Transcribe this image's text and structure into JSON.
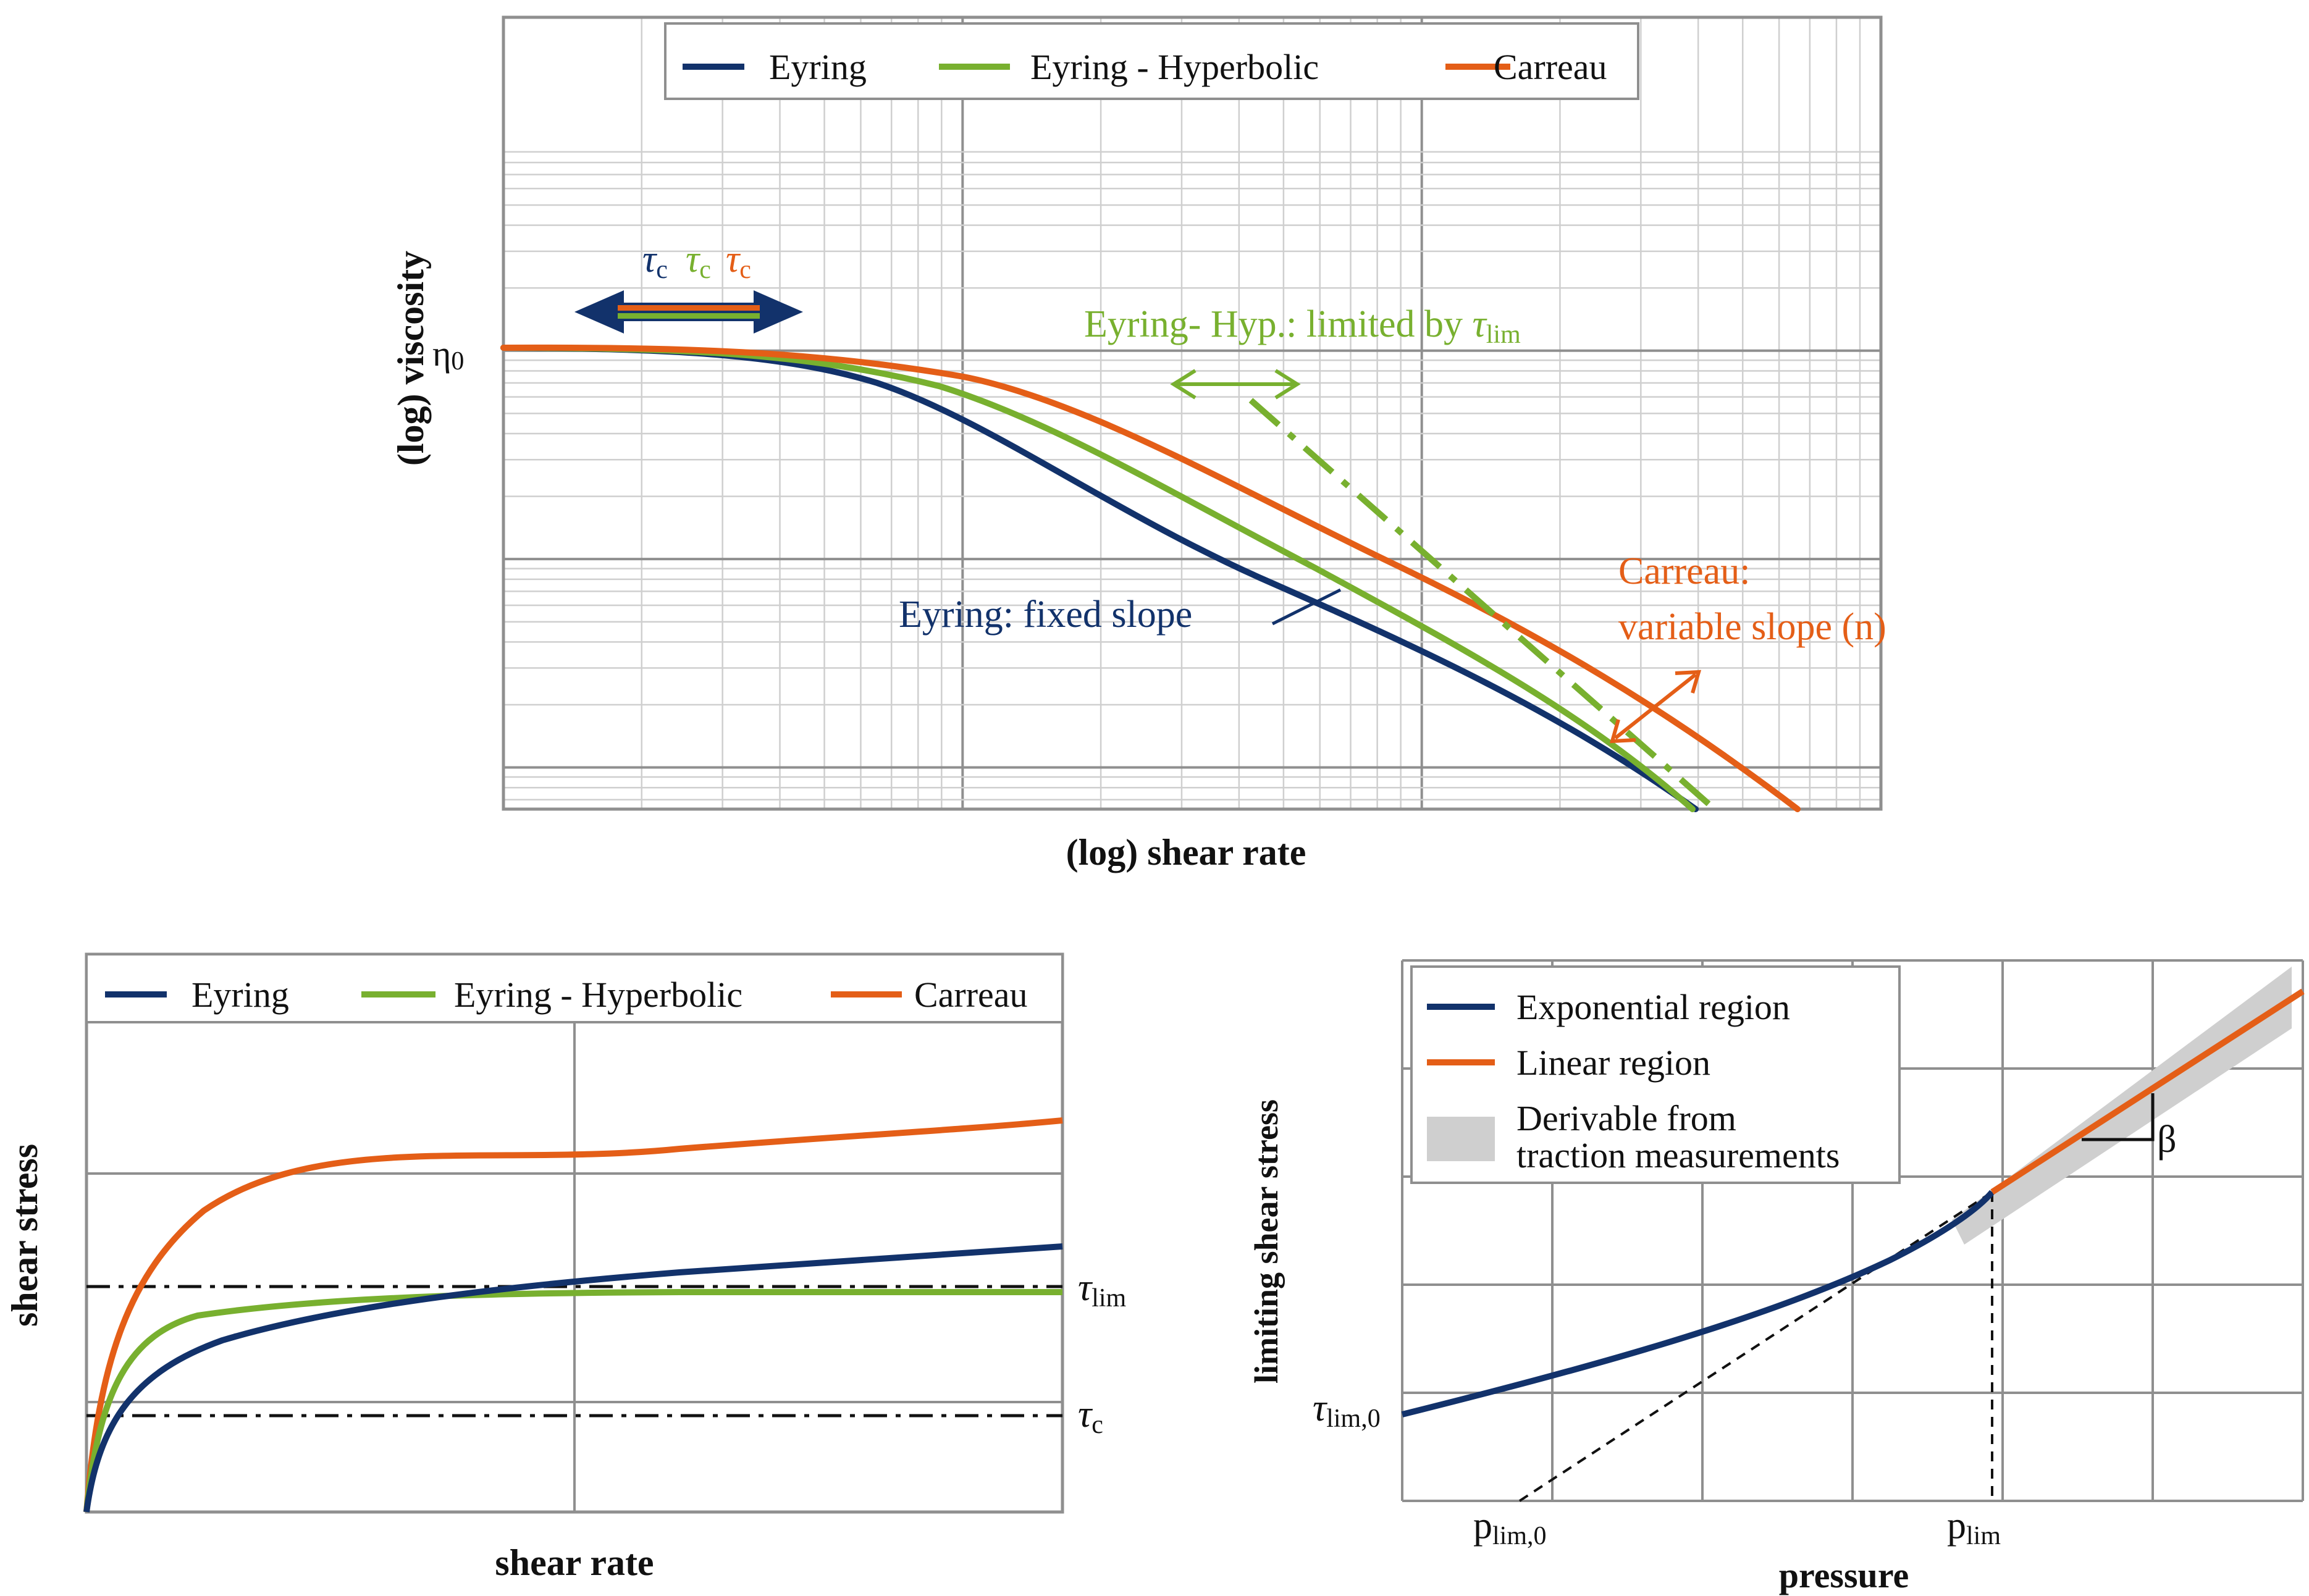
{
  "figure": {
    "colors": {
      "eyring": "#12326b",
      "hyperbolic": "#78b02f",
      "carreau": "#e45e17",
      "band": "#cfcfcf",
      "grid": "#8f8f8f",
      "text": "#111111"
    }
  },
  "chart_data": [
    {
      "type": "line",
      "title": "",
      "xlabel": "(log) shear rate",
      "ylabel": "(log) viscosity",
      "xscale": "log",
      "yscale": "log",
      "xlim": [
        0.001,
        1000
      ],
      "ylim": [
        0.001,
        10
      ],
      "grid": true,
      "legend_position": "top-center",
      "y_tick_labels": [
        "η0"
      ],
      "series": [
        {
          "name": "Eyring",
          "color": "#12326b",
          "x": [
            0.001,
            0.01,
            0.1,
            1,
            10,
            100,
            200,
            400
          ],
          "y": [
            1.45,
            1.4,
            0.8,
            0.18,
            0.024,
            0.0028,
            0.0015,
            0.00075
          ]
        },
        {
          "name": "Eyring - Hyperbolic",
          "color": "#78b02f",
          "x": [
            0.001,
            0.01,
            0.1,
            1,
            10,
            100,
            200,
            400
          ],
          "y": [
            1.45,
            1.42,
            0.95,
            0.26,
            0.034,
            0.0035,
            0.0017,
            0.00075
          ]
        },
        {
          "name": "Carreau",
          "color": "#e45e17",
          "x": [
            0.001,
            0.01,
            0.1,
            1,
            10,
            100,
            200,
            600
          ],
          "y": [
            1.45,
            1.43,
            1.05,
            0.32,
            0.05,
            0.0075,
            0.004,
            0.0011
          ]
        },
        {
          "name": "Eyring- Hyp.: limited by τlim",
          "style": "dash-dot",
          "color": "#78b02f",
          "x": [
            2,
            450
          ],
          "y": [
            0.9,
            0.0011
          ]
        }
      ],
      "annotations": {
        "tau_c_symbol": "τ",
        "tau_c_sub": "c",
        "hyp_limit_prefix": "Eyring- Hyp.: limited by ",
        "tau_symbol": "τ",
        "tau_lim_sub": "lim",
        "eyring_note": "Eyring: fixed slope",
        "carreau_note_line1": "Carreau:",
        "carreau_note_line2": "variable slope (n)"
      }
    },
    {
      "type": "line",
      "title": "",
      "xlabel": "shear rate",
      "ylabel": "shear stress",
      "xlim": [
        0,
        1
      ],
      "ylim": [
        0,
        1
      ],
      "grid": true,
      "legend_position": "top",
      "series": [
        {
          "name": "Eyring",
          "color": "#12326b",
          "x": [
            0,
            0.05,
            0.1,
            0.25,
            0.5,
            0.75,
            1
          ],
          "y": [
            0,
            0.35,
            0.4,
            0.46,
            0.52,
            0.56,
            0.588
          ]
        },
        {
          "name": "Eyring - Hyperbolic",
          "color": "#78b02f",
          "x": [
            0,
            0.05,
            0.1,
            0.25,
            0.5,
            0.75,
            1
          ],
          "y": [
            0,
            0.43,
            0.455,
            0.47,
            0.474,
            0.475,
            0.476
          ]
        },
        {
          "name": "Carreau",
          "color": "#e45e17",
          "x": [
            0,
            0.05,
            0.1,
            0.25,
            0.5,
            0.75,
            1
          ],
          "y": [
            0,
            0.5,
            0.62,
            0.74,
            0.82,
            0.87,
            0.906
          ]
        }
      ],
      "reference_lines": [
        {
          "label_symbol": "τ",
          "label_sub": "lim",
          "y": 0.486
        },
        {
          "label_symbol": "τ",
          "label_sub": "c",
          "y": 0.207
        }
      ]
    },
    {
      "type": "line",
      "title": "",
      "xlabel": "pressure",
      "ylabel": "limiting shear stress",
      "xlim": [
        0,
        1
      ],
      "ylim": [
        0,
        1
      ],
      "grid": true,
      "legend_position": "top-left",
      "series": [
        {
          "name": "Exponential region",
          "color": "#12326b",
          "x": [
            0,
            0.2,
            0.4,
            0.55,
            0.68
          ],
          "y": [
            0.16,
            0.23,
            0.35,
            0.47,
            0.57
          ]
        },
        {
          "name": "Linear region",
          "color": "#e45e17",
          "x": [
            0.68,
            0.85,
            1.0
          ],
          "y": [
            0.57,
            0.76,
            0.93
          ]
        }
      ],
      "band_label_line1": "Derivable from",
      "band_label_line2": "traction measurements",
      "tick_labels": {
        "y0_symbol": "τ",
        "y0_sub": "lim,0",
        "p0_main": "p",
        "p0_sub": "lim,0",
        "p_main": "p",
        "p_sub": "lim"
      },
      "slope_label": "β"
    }
  ]
}
